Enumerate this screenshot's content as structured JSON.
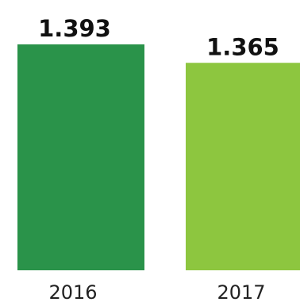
{
  "chart_data": {
    "type": "bar",
    "categories": [
      "2016",
      "2017"
    ],
    "values": [
      1.393,
      1.365
    ],
    "value_labels": [
      "1.393",
      "1.365"
    ],
    "title": "",
    "xlabel": "",
    "ylabel": "",
    "grid": false,
    "legend": "none",
    "colors": [
      "#2a934a",
      "#8dc63f"
    ]
  }
}
